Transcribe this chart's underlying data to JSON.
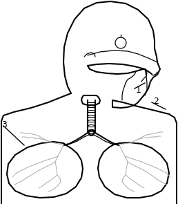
{
  "background_color": "#ffffff",
  "label1_text": "1",
  "label2_text": "2",
  "label3_text": "3",
  "figsize": [
    2.58,
    2.95
  ],
  "dpi": 100,
  "lw_main": 1.5,
  "lw_inner": 0.9,
  "lw_tree": 0.7,
  "color_main": "#000000",
  "color_inner": "#aaaaaa"
}
